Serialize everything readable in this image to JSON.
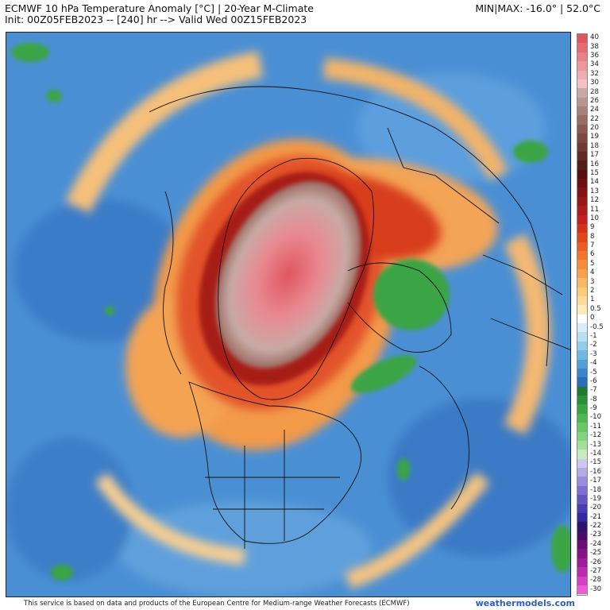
{
  "header": {
    "title": "ECMWF 10 hPa Temperature Anomaly [°C] | 20-Year M-Climate",
    "init_line": "Init: 00Z05FEB2023 -- [240] hr --> Valid Wed 00Z15FEB2023",
    "minmax": "MIN|MAX: -16.0° | 52.0°C"
  },
  "legend": {
    "entries": [
      {
        "label": "40",
        "color": "#e0555e"
      },
      {
        "label": "38",
        "color": "#e46b72"
      },
      {
        "label": "36",
        "color": "#e88187"
      },
      {
        "label": "34",
        "color": "#ec979c"
      },
      {
        "label": "32",
        "color": "#f0adb1"
      },
      {
        "label": "30",
        "color": "#f3c1c4"
      },
      {
        "label": "28",
        "color": "#c8a9a6"
      },
      {
        "label": "26",
        "color": "#b8958f"
      },
      {
        "label": "24",
        "color": "#a88178"
      },
      {
        "label": "22",
        "color": "#986d63"
      },
      {
        "label": "20",
        "color": "#885a50"
      },
      {
        "label": "19",
        "color": "#7a4a40"
      },
      {
        "label": "18",
        "color": "#6c3b32"
      },
      {
        "label": "17",
        "color": "#5e2d25"
      },
      {
        "label": "16",
        "color": "#52201a"
      },
      {
        "label": "15",
        "color": "#5a0e0e"
      },
      {
        "label": "14",
        "color": "#6e1010"
      },
      {
        "label": "13",
        "color": "#821414"
      },
      {
        "label": "12",
        "color": "#981818"
      },
      {
        "label": "11",
        "color": "#ae1c1c"
      },
      {
        "label": "10",
        "color": "#c42020"
      },
      {
        "label": "9",
        "color": "#d83018"
      },
      {
        "label": "8",
        "color": "#e4461c"
      },
      {
        "label": "7",
        "color": "#ec5c24"
      },
      {
        "label": "6",
        "color": "#f2752e"
      },
      {
        "label": "5",
        "color": "#f68c3a"
      },
      {
        "label": "4",
        "color": "#f9a24c"
      },
      {
        "label": "3",
        "color": "#fbb862"
      },
      {
        "label": "2",
        "color": "#fcca7a"
      },
      {
        "label": "1",
        "color": "#fdda96"
      },
      {
        "label": "0.5",
        "color": "#feeab8"
      },
      {
        "label": "0",
        "color": "#ffffff"
      },
      {
        "label": "-0.5",
        "color": "#d6eef8"
      },
      {
        "label": "-1",
        "color": "#b6e0f2"
      },
      {
        "label": "-2",
        "color": "#92cdea"
      },
      {
        "label": "-3",
        "color": "#6fb8e2"
      },
      {
        "label": "-4",
        "color": "#509fd8"
      },
      {
        "label": "-5",
        "color": "#3a86cc"
      },
      {
        "label": "-6",
        "color": "#2a6ebe"
      },
      {
        "label": "-7",
        "color": "#1e7a2e"
      },
      {
        "label": "-8",
        "color": "#2a9038"
      },
      {
        "label": "-9",
        "color": "#38a444"
      },
      {
        "label": "-10",
        "color": "#4cb852"
      },
      {
        "label": "-11",
        "color": "#66c866"
      },
      {
        "label": "-12",
        "color": "#84d47e"
      },
      {
        "label": "-13",
        "color": "#a4e09a"
      },
      {
        "label": "-14",
        "color": "#c6ebbc"
      },
      {
        "label": "-15",
        "color": "#cfc8ee"
      },
      {
        "label": "-16",
        "color": "#b4aae6"
      },
      {
        "label": "-17",
        "color": "#9a8cdc"
      },
      {
        "label": "-18",
        "color": "#7e70d0"
      },
      {
        "label": "-19",
        "color": "#6454c2"
      },
      {
        "label": "-20",
        "color": "#4a3cb2"
      },
      {
        "label": "-21",
        "color": "#34289c"
      },
      {
        "label": "-22",
        "color": "#2a1670"
      },
      {
        "label": "-23",
        "color": "#4a0c66"
      },
      {
        "label": "-24",
        "color": "#6a0e76"
      },
      {
        "label": "-25",
        "color": "#861486"
      },
      {
        "label": "-26",
        "color": "#a01c98"
      },
      {
        "label": "-27",
        "color": "#bc2aae"
      },
      {
        "label": "-28",
        "color": "#d63ec4"
      },
      {
        "label": "-30",
        "color": "#ee5ad8"
      }
    ]
  },
  "footer": {
    "credit": "This service is based on data and products of the European Centre for Medium-range Weather Forecasts (ECMWF)",
    "brand": "weathermodels.com"
  },
  "colors": {
    "background_blue": "#4a8fd4",
    "warm_orange": "#f39a48",
    "warm_red": "#d8341c",
    "core_pink": "#e2a3a8",
    "cold_green": "#3aa444"
  }
}
